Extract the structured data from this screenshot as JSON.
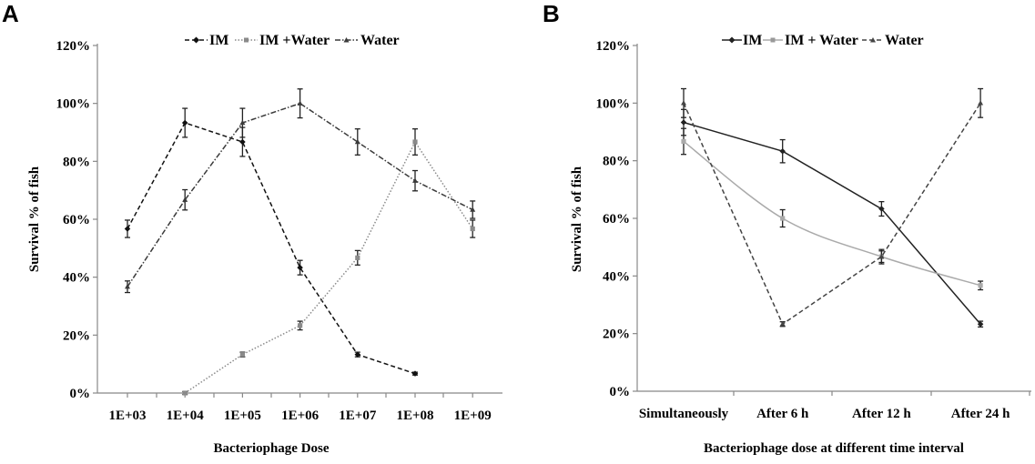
{
  "figure": {
    "panels": [
      "A",
      "B"
    ]
  },
  "chart_data": [
    {
      "panel": "A",
      "type": "line",
      "title": "",
      "xlabel": "Bacteriophage Dose",
      "ylabel": "Survival  % of fish",
      "categories": [
        "1E+03",
        "1E+04",
        "1E+05",
        "1E+06",
        "1E+07",
        "1E+08",
        "1E+09"
      ],
      "ylim": [
        0,
        120
      ],
      "yticks": [
        0,
        20,
        40,
        60,
        80,
        100,
        120
      ],
      "ytick_labels": [
        "0%",
        "20%",
        "40%",
        "60%",
        "80%",
        "100%",
        "120%"
      ],
      "legend_position": "top-center",
      "series": [
        {
          "name": "IM",
          "style": "dashed",
          "marker": "diamond",
          "color": "#111111",
          "values": [
            56.7,
            93.3,
            86.7,
            43.3,
            13.3,
            6.7,
            null
          ],
          "errors": [
            3,
            5,
            5,
            2.5,
            0.8,
            0.5,
            null
          ]
        },
        {
          "name": "IM +Water",
          "style": "dotted",
          "marker": "square",
          "color": "#8a8a8a",
          "values": [
            null,
            0,
            13.3,
            23.3,
            46.7,
            86.7,
            56.7
          ],
          "errors": [
            null,
            0.5,
            0.8,
            1.5,
            2.5,
            4.5,
            3
          ]
        },
        {
          "name": "Water",
          "style": "dash-dot",
          "marker": "triangle",
          "color": "#3a3a3a",
          "values": [
            36.7,
            66.7,
            93.3,
            100,
            86.7,
            73.3,
            63.3
          ],
          "errors": [
            2,
            3.5,
            5,
            5,
            4.5,
            3.5,
            3
          ]
        }
      ]
    },
    {
      "panel": "B",
      "type": "line",
      "title": "",
      "xlabel": "Bacteriophage dose at different time interval",
      "ylabel": "Survival  % of fish",
      "categories": [
        "Simultaneously",
        "After 6 h",
        "After 12 h",
        "After 24 h"
      ],
      "ylim": [
        0,
        120
      ],
      "yticks": [
        0,
        20,
        40,
        60,
        80,
        100,
        120
      ],
      "ytick_labels": [
        "0%",
        "20%",
        "40%",
        "60%",
        "80%",
        "100%",
        "120%"
      ],
      "legend_position": "top-center",
      "series": [
        {
          "name": "IM",
          "style": "solid",
          "marker": "diamond",
          "color": "#222222",
          "values": [
            93.3,
            83.3,
            63.3,
            23.3
          ],
          "errors": [
            4.5,
            4,
            2.5,
            1
          ]
        },
        {
          "name": "IM + Water",
          "style": "solid",
          "marker": "square",
          "color": "#aaaaaa",
          "values": [
            86.7,
            60,
            46.7,
            36.7
          ],
          "errors": [
            4.5,
            3,
            2,
            1.5
          ]
        },
        {
          "name": "Water",
          "style": "dashed",
          "marker": "triangle",
          "color": "#444444",
          "values": [
            100,
            23.3,
            46.7,
            100
          ],
          "errors": [
            5,
            0.8,
            2.5,
            5
          ]
        }
      ]
    }
  ]
}
